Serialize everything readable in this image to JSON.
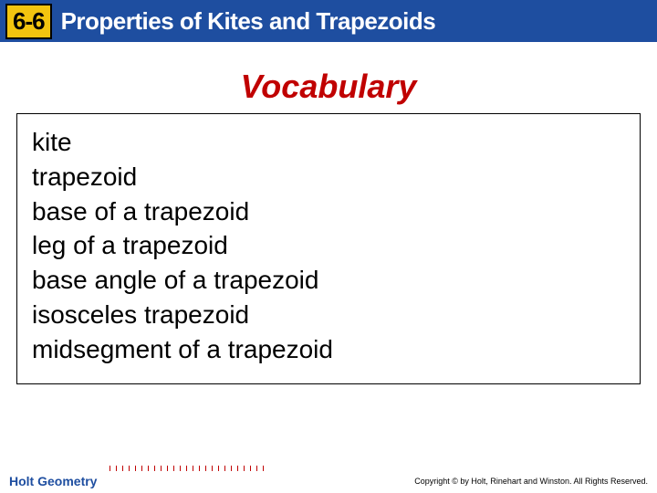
{
  "header": {
    "section_number": "6-6",
    "title": "Properties of Kites and Trapezoids",
    "bar_bg": "#1e4ea0",
    "badge_bg": "#f2c40f",
    "badge_text_color": "#000000",
    "title_color": "#ffffff",
    "header_fontsize": 26
  },
  "vocab_heading": {
    "text": "Vocabulary",
    "color": "#c00000",
    "fontsize": 36,
    "italic": true,
    "weight": 900
  },
  "content": {
    "border_color": "#000000",
    "term_color": "#000000",
    "term_fontsize": 28,
    "terms": [
      "kite",
      "trapezoid",
      "base of a trapezoid",
      "leg of a trapezoid",
      "base angle of a trapezoid",
      "isosceles trapezoid",
      "midsegment of a trapezoid"
    ]
  },
  "footer": {
    "left_text": "Holt Geometry",
    "left_color": "#1e4ea0",
    "right_text": "Copyright © by Holt, Rinehart and Winston. All Rights Reserved.",
    "right_color": "#000000",
    "tick_color": "#c00000"
  },
  "background_color": "#ffffff"
}
